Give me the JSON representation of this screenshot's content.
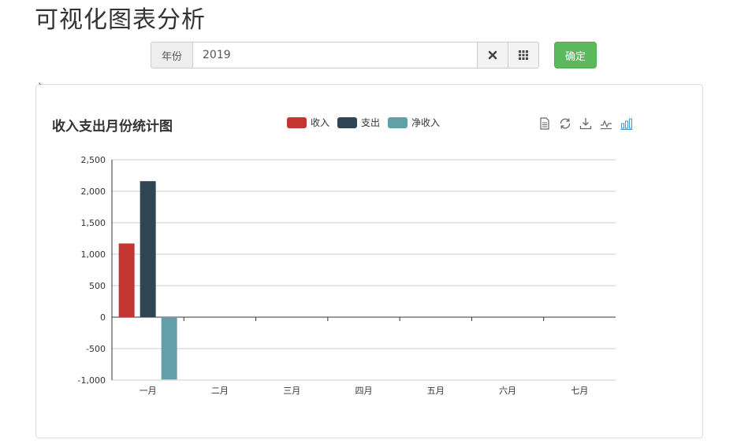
{
  "page": {
    "title": "可视化图表分析"
  },
  "filter": {
    "year_label": "年份",
    "year_value": "2019",
    "confirm_label": "确定",
    "clear_icon": "times-icon",
    "grid_icon": "grid-icon"
  },
  "panel": {
    "stray_mark": "`"
  },
  "chart_data": {
    "type": "bar",
    "title": "收入支出月份统计图",
    "categories": [
      "一月",
      "二月",
      "三月",
      "四月",
      "五月",
      "六月",
      "七月"
    ],
    "series": [
      {
        "name": "收入",
        "color": "#c23531",
        "values": [
          1170,
          0,
          0,
          0,
          0,
          0,
          0
        ]
      },
      {
        "name": "支出",
        "color": "#2f4554",
        "values": [
          2160,
          0,
          0,
          0,
          0,
          0,
          0
        ]
      },
      {
        "name": "净收入",
        "color": "#61a0a8",
        "values": [
          -990,
          0,
          0,
          0,
          0,
          0,
          0
        ]
      }
    ],
    "ylim": [
      -1000,
      2500
    ],
    "yticks": [
      "2,500",
      "2,000",
      "1,500",
      "1,000",
      "500",
      "0",
      "-500",
      "-1,000"
    ],
    "ytick_values": [
      2500,
      2000,
      1500,
      1000,
      500,
      0,
      -500,
      -1000
    ],
    "legend_position": "top-center",
    "grid": true,
    "toolbox": [
      "data-view-icon",
      "restore-icon",
      "save-image-icon",
      "line-chart-icon",
      "bar-chart-icon"
    ]
  }
}
